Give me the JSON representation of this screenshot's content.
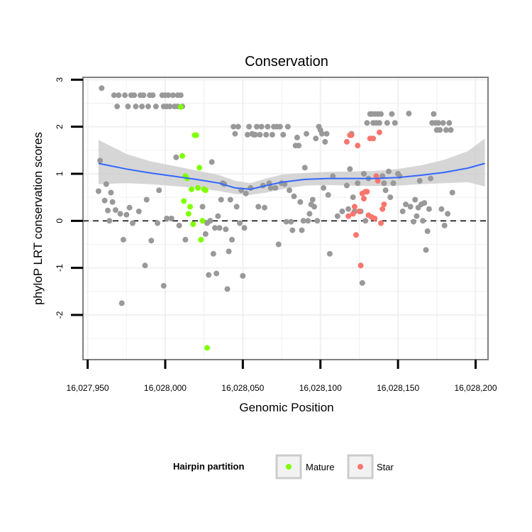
{
  "chart_data": {
    "type": "scatter",
    "title": "Conservation",
    "xlabel": "Genomic Position",
    "ylabel": "phyloP LRT conservation scores",
    "xlim": [
      16027947,
      16028208
    ],
    "ylim": [
      -2.95,
      3.05
    ],
    "x_ticks": [
      16027950,
      16028000,
      16028050,
      16028100,
      16028150,
      16028200
    ],
    "x_tick_labels": [
      "16,027,950",
      "16,028,000",
      "16,028,050",
      "16,028,100",
      "16,028,150",
      "16,028,200"
    ],
    "y_ticks": [
      -2,
      -1,
      0,
      1,
      2,
      3
    ],
    "y_tick_labels": [
      "-2",
      "-1",
      "0",
      "1",
      "2",
      "3"
    ],
    "reference_line": {
      "y": 0,
      "style": "dashed"
    },
    "grid": true,
    "colors": {
      "Other": "#999999",
      "Mature": "#7fff00",
      "Star": "#f8766d",
      "smooth_line": "#3366ff",
      "smooth_band": "#cccccc",
      "panel_border": "#7f7f7f",
      "grid": "#f0f0f0"
    },
    "legend": {
      "title": "Hairpin partition",
      "position": "bottom",
      "entries": [
        {
          "label": "Mature",
          "group": "Mature"
        },
        {
          "label": "Star",
          "group": "Star"
        }
      ]
    },
    "series": [
      {
        "name": "Other",
        "points": [
          [
            16027957,
            0.63
          ],
          [
            16027958,
            1.28
          ],
          [
            16027959,
            2.82
          ],
          [
            16027961,
            0.43
          ],
          [
            16027962,
            0.78
          ],
          [
            16027963,
            0.22
          ],
          [
            16027964,
            0.0
          ],
          [
            16027965,
            0.6
          ],
          [
            16027966,
            0.4
          ],
          [
            16027967,
            2.67
          ],
          [
            16027968,
            0.23
          ],
          [
            16027969,
            2.43
          ],
          [
            16027970,
            2.67
          ],
          [
            16027971,
            0.15
          ],
          [
            16027972,
            -1.75
          ],
          [
            16027973,
            -0.4
          ],
          [
            16027974,
            2.67
          ],
          [
            16027975,
            0.13
          ],
          [
            16027976,
            2.43
          ],
          [
            16027977,
            0.28
          ],
          [
            16027978,
            2.67
          ],
          [
            16027979,
            -0.05
          ],
          [
            16027980,
            2.67
          ],
          [
            16027981,
            2.43
          ],
          [
            16027983,
            0.2
          ],
          [
            16027984,
            2.67
          ],
          [
            16027985,
            2.43
          ],
          [
            16027986,
            2.67
          ],
          [
            16027987,
            -0.95
          ],
          [
            16027988,
            0.45
          ],
          [
            16027989,
            2.43
          ],
          [
            16027990,
            2.67
          ],
          [
            16027991,
            -0.42
          ],
          [
            16027992,
            2.67
          ],
          [
            16027994,
            2.43
          ],
          [
            16027995,
            -0.05
          ],
          [
            16027996,
            0.65
          ],
          [
            16027998,
            2.67
          ],
          [
            16027999,
            2.43
          ],
          [
            16027999,
            -1.38
          ],
          [
            16028000,
            2.67
          ],
          [
            16028001,
            2.43
          ],
          [
            16028001,
            0.05
          ],
          [
            16028002,
            2.67
          ],
          [
            16028003,
            2.43
          ],
          [
            16028004,
            0.05
          ],
          [
            16028005,
            2.67
          ],
          [
            16028006,
            2.43
          ],
          [
            16028007,
            1.35
          ],
          [
            16028008,
            2.67
          ],
          [
            16028008,
            2.43
          ],
          [
            16028009,
            -0.1
          ],
          [
            16028010,
            2.67
          ],
          [
            16028011,
            2.43
          ],
          [
            16028013,
            -0.4
          ],
          [
            16028024,
            0.3
          ],
          [
            16028026,
            -0.28
          ],
          [
            16028027,
            -0.05
          ],
          [
            16028028,
            -1.15
          ],
          [
            16028029,
            0.0
          ],
          [
            16028030,
            1.25
          ],
          [
            16028031,
            -0.7
          ],
          [
            16028032,
            -0.15
          ],
          [
            16028033,
            -1.12
          ],
          [
            16028034,
            0.1
          ],
          [
            16028035,
            -0.15
          ],
          [
            16028036,
            0.45
          ],
          [
            16028037,
            0.8
          ],
          [
            16028038,
            0.78
          ],
          [
            16028039,
            -0.18
          ],
          [
            16028040,
            -1.45
          ],
          [
            16028041,
            -0.65
          ],
          [
            16028042,
            0.45
          ],
          [
            16028043,
            -0.4
          ],
          [
            16028044,
            2.0
          ],
          [
            16028045,
            1.85
          ],
          [
            16028046,
            0.3
          ],
          [
            16028047,
            2.0
          ],
          [
            16028048,
            -0.05
          ],
          [
            16028049,
            0.65
          ],
          [
            16028050,
            -1.17
          ],
          [
            16028051,
            -0.15
          ],
          [
            16028052,
            0.58
          ],
          [
            16028053,
            1.83
          ],
          [
            16028054,
            2.0
          ],
          [
            16028055,
            0.7
          ],
          [
            16028056,
            1.85
          ],
          [
            16028057,
            1.83
          ],
          [
            16028058,
            1.83
          ],
          [
            16028059,
            2.0
          ],
          [
            16028060,
            0.3
          ],
          [
            16028061,
            1.83
          ],
          [
            16028062,
            2.0
          ],
          [
            16028063,
            0.75
          ],
          [
            16028064,
            0.28
          ],
          [
            16028065,
            1.83
          ],
          [
            16028066,
            2.0
          ],
          [
            16028067,
            0.8
          ],
          [
            16028068,
            0.7
          ],
          [
            16028069,
            1.83
          ],
          [
            16028070,
            2.0
          ],
          [
            16028071,
            0.7
          ],
          [
            16028072,
            2.0
          ],
          [
            16028073,
            -0.5
          ],
          [
            16028074,
            2.0
          ],
          [
            16028075,
            0.8
          ],
          [
            16028076,
            1.83
          ],
          [
            16028077,
            0.78
          ],
          [
            16028078,
            -0.02
          ],
          [
            16028079,
            2.0
          ],
          [
            16028080,
            0.65
          ],
          [
            16028081,
            -0.02
          ],
          [
            16028082,
            -0.2
          ],
          [
            16028083,
            0.52
          ],
          [
            16028084,
            1.6
          ],
          [
            16028085,
            1.77
          ],
          [
            16028086,
            1.6
          ],
          [
            16028087,
            0.4
          ],
          [
            16028088,
            -0.2
          ],
          [
            16028089,
            0.0
          ],
          [
            16028090,
            1.13
          ],
          [
            16028091,
            1.85
          ],
          [
            16028092,
            0.0
          ],
          [
            16028093,
            0.15
          ],
          [
            16028094,
            0.35
          ],
          [
            16028095,
            0.45
          ],
          [
            16028096,
            0.3
          ],
          [
            16028097,
            1.75
          ],
          [
            16028098,
            0.0
          ],
          [
            16028099,
            2.0
          ],
          [
            16028100,
            1.93
          ],
          [
            16028101,
            1.85
          ],
          [
            16028102,
            0.7
          ],
          [
            16028103,
            1.68
          ],
          [
            16028104,
            1.85
          ],
          [
            16028105,
            0.55
          ],
          [
            16028106,
            -0.7
          ],
          [
            16028108,
            0.95
          ],
          [
            16028111,
            0.1
          ],
          [
            16028114,
            0.2
          ],
          [
            16028117,
            0.75
          ],
          [
            16028118,
            0.25
          ],
          [
            16028119,
            1.1
          ],
          [
            16028120,
            1.85
          ],
          [
            16028121,
            0.5
          ],
          [
            16028122,
            0.2
          ],
          [
            16028124,
            0.8
          ],
          [
            16028126,
            0.2
          ],
          [
            16028127,
            -1.32
          ],
          [
            16028128,
            1.0
          ],
          [
            16028129,
            0.0
          ],
          [
            16028130,
            2.08
          ],
          [
            16028131,
            0.9
          ],
          [
            16028132,
            2.27
          ],
          [
            16028133,
            2.27
          ],
          [
            16028134,
            2.08
          ],
          [
            16028135,
            2.27
          ],
          [
            16028136,
            2.08
          ],
          [
            16028137,
            2.27
          ],
          [
            16028138,
            2.08
          ],
          [
            16028139,
            2.27
          ],
          [
            16028140,
            0.95
          ],
          [
            16028141,
            0.8
          ],
          [
            16028142,
            0.65
          ],
          [
            16028143,
            2.08
          ],
          [
            16028144,
            1.05
          ],
          [
            16028145,
            0.5
          ],
          [
            16028146,
            2.27
          ],
          [
            16028147,
            0.8
          ],
          [
            16028148,
            2.08
          ],
          [
            16028150,
            1.0
          ],
          [
            16028151,
            0.95
          ],
          [
            16028153,
            0.2
          ],
          [
            16028155,
            0.35
          ],
          [
            16028157,
            2.28
          ],
          [
            16028158,
            0.3
          ],
          [
            16028160,
            -0.02
          ],
          [
            16028161,
            0.45
          ],
          [
            16028162,
            0.1
          ],
          [
            16028163,
            0.28
          ],
          [
            16028164,
            0.85
          ],
          [
            16028165,
            0.35
          ],
          [
            16028166,
            0.0
          ],
          [
            16028167,
            0.38
          ],
          [
            16028168,
            -0.62
          ],
          [
            16028169,
            -0.22
          ],
          [
            16028170,
            0.25
          ],
          [
            16028171,
            0.9
          ],
          [
            16028172,
            2.08
          ],
          [
            16028173,
            2.27
          ],
          [
            16028174,
            2.08
          ],
          [
            16028175,
            1.93
          ],
          [
            16028176,
            2.08
          ],
          [
            16028177,
            1.93
          ],
          [
            16028178,
            0.25
          ],
          [
            16028179,
            2.08
          ],
          [
            16028180,
            -0.1
          ],
          [
            16028181,
            1.93
          ],
          [
            16028182,
            0.15
          ],
          [
            16028183,
            2.08
          ],
          [
            16028184,
            1.93
          ],
          [
            16028185,
            0.6
          ]
        ]
      },
      {
        "name": "Mature",
        "points": [
          [
            16028010,
            2.42
          ],
          [
            16028011,
            1.38
          ],
          [
            16028012,
            0.42
          ],
          [
            16028013,
            0.95
          ],
          [
            16028014,
            0.9
          ],
          [
            16028015,
            0.15
          ],
          [
            16028016,
            0.3
          ],
          [
            16028017,
            0.67
          ],
          [
            16028018,
            -0.07
          ],
          [
            16028019,
            1.82
          ],
          [
            16028020,
            1.82
          ],
          [
            16028021,
            0.7
          ],
          [
            16028022,
            1.13
          ],
          [
            16028023,
            -0.4
          ],
          [
            16028024,
            0.0
          ],
          [
            16028025,
            0.67
          ],
          [
            16028026,
            0.65
          ],
          [
            16028027,
            -2.7
          ]
        ]
      },
      {
        "name": "Star",
        "points": [
          [
            16028117,
            1.68
          ],
          [
            16028118,
            0.1
          ],
          [
            16028119,
            1.82
          ],
          [
            16028120,
            1.82
          ],
          [
            16028121,
            0.15
          ],
          [
            16028122,
            0.3
          ],
          [
            16028123,
            -0.3
          ],
          [
            16028124,
            1.6
          ],
          [
            16028125,
            0.2
          ],
          [
            16028126,
            -0.95
          ],
          [
            16028127,
            0.58
          ],
          [
            16028128,
            0.47
          ],
          [
            16028129,
            0.62
          ],
          [
            16028130,
            0.62
          ],
          [
            16028131,
            0.12
          ],
          [
            16028132,
            1.75
          ],
          [
            16028133,
            0.08
          ],
          [
            16028134,
            1.75
          ],
          [
            16028135,
            0.05
          ],
          [
            16028136,
            0.95
          ],
          [
            16028137,
            0.85
          ],
          [
            16028138,
            1.88
          ],
          [
            16028139,
            -0.05
          ],
          [
            16028140,
            0.25
          ],
          [
            16028141,
            0.35
          ]
        ]
      }
    ],
    "smooth": {
      "x": [
        16027957,
        16027975,
        16027990,
        16028005,
        16028020,
        16028035,
        16028045,
        16028055,
        16028065,
        16028075,
        16028090,
        16028105,
        16028120,
        16028135,
        16028150,
        16028165,
        16028180,
        16028195,
        16028206
      ],
      "y": [
        1.22,
        1.1,
        1.02,
        0.95,
        0.88,
        0.8,
        0.7,
        0.67,
        0.75,
        0.82,
        0.88,
        0.9,
        0.9,
        0.9,
        0.92,
        0.97,
        1.03,
        1.12,
        1.22
      ],
      "lower": [
        0.78,
        0.8,
        0.78,
        0.74,
        0.7,
        0.63,
        0.57,
        0.55,
        0.6,
        0.67,
        0.75,
        0.76,
        0.75,
        0.74,
        0.75,
        0.78,
        0.8,
        0.82,
        0.73
      ],
      "upper": [
        1.72,
        1.42,
        1.27,
        1.17,
        1.07,
        0.97,
        0.85,
        0.8,
        0.9,
        0.98,
        1.02,
        1.04,
        1.05,
        1.06,
        1.1,
        1.18,
        1.3,
        1.48,
        1.75
      ]
    }
  }
}
